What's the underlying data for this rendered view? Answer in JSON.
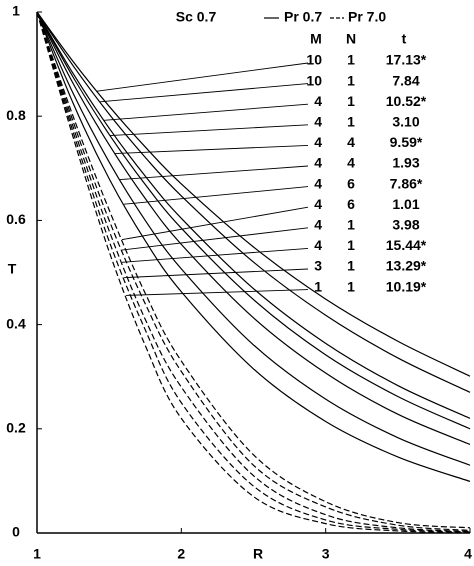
{
  "chart_data": {
    "type": "line",
    "x_label": "R",
    "y_label": "T",
    "annotation": "Sc 0.7",
    "legend_styles": {
      "solid": "Pr 0.7",
      "dashed": "Pr 7.0"
    },
    "columns": [
      "M",
      "N",
      "t"
    ],
    "x": [
      1,
      1.25,
      1.5,
      1.75,
      2,
      2.5,
      3,
      3.5,
      4
    ],
    "xlim": [
      1,
      4
    ],
    "xticks": [
      1,
      2,
      3,
      4
    ],
    "ylim": [
      0,
      1
    ],
    "yticks": [
      0,
      0.2,
      0.4,
      0.6,
      0.8,
      1
    ],
    "color": "#000000",
    "series": [
      {
        "M": 10,
        "N": 1,
        "t": "17.13*",
        "dashed": false,
        "values": [
          1,
          0.905,
          0.819,
          0.741,
          0.67,
          0.549,
          0.449,
          0.368,
          0.301
        ]
      },
      {
        "M": 10,
        "N": 1,
        "t": "7.84",
        "dashed": false,
        "values": [
          1,
          0.897,
          0.804,
          0.721,
          0.647,
          0.52,
          0.418,
          0.336,
          0.27
        ]
      },
      {
        "M": 4,
        "N": 1,
        "t": "10.52*",
        "dashed": false,
        "values": [
          1,
          0.882,
          0.777,
          0.685,
          0.604,
          0.469,
          0.364,
          0.283,
          0.22
        ]
      },
      {
        "M": 4,
        "N": 1,
        "t": "3.10",
        "dashed": false,
        "values": [
          1,
          0.875,
          0.765,
          0.669,
          0.585,
          0.448,
          0.342,
          0.262,
          0.2
        ]
      },
      {
        "M": 4,
        "N": 4,
        "t": "9.59*",
        "dashed": false,
        "values": [
          1,
          0.863,
          0.745,
          0.642,
          0.554,
          0.413,
          0.307,
          0.228,
          0.17
        ]
      },
      {
        "M": 4,
        "N": 4,
        "t": "1.93",
        "dashed": false,
        "values": [
          1,
          0.844,
          0.712,
          0.6,
          0.507,
          0.361,
          0.257,
          0.183,
          0.13
        ]
      },
      {
        "M": 4,
        "N": 6,
        "t": "7.86*",
        "dashed": false,
        "values": [
          1,
          0.825,
          0.68,
          0.561,
          0.463,
          0.315,
          0.214,
          0.146,
          0.099
        ]
      },
      {
        "M": 4,
        "N": 6,
        "t": "1.01",
        "dashed": true,
        "values": [
          1,
          0.8,
          0.62,
          0.46,
          0.33,
          0.15,
          0.06,
          0.02,
          0.01
        ]
      },
      {
        "M": 4,
        "N": 1,
        "t": "3.98",
        "dashed": true,
        "values": [
          1,
          0.79,
          0.6,
          0.44,
          0.31,
          0.13,
          0.05,
          0.015,
          0.005
        ]
      },
      {
        "M": 4,
        "N": 1,
        "t": "15.44*",
        "dashed": true,
        "values": [
          1,
          0.78,
          0.58,
          0.41,
          0.28,
          0.11,
          0.035,
          0.01,
          0.003
        ]
      },
      {
        "M": 3,
        "N": 1,
        "t": "13.29*",
        "dashed": true,
        "values": [
          1,
          0.77,
          0.56,
          0.39,
          0.25,
          0.09,
          0.025,
          0.007,
          0.002
        ]
      },
      {
        "M": 1,
        "N": 1,
        "t": "10.19*",
        "dashed": true,
        "values": [
          1,
          0.76,
          0.54,
          0.36,
          0.22,
          0.07,
          0.018,
          0.004,
          0.001
        ]
      }
    ]
  }
}
